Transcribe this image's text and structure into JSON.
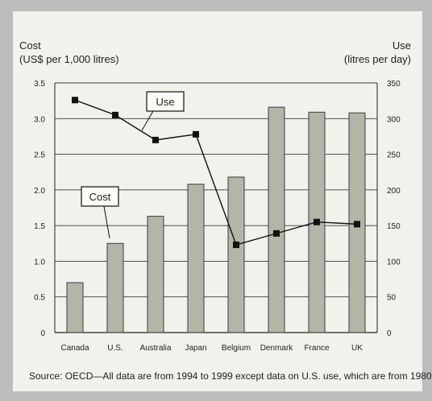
{
  "chart_data": {
    "type": "bar",
    "categories": [
      "Canada",
      "U.S.",
      "Australia",
      "Japan",
      "Belgium",
      "Denmark",
      "France",
      "UK"
    ],
    "series": [
      {
        "name": "Cost",
        "type": "bar",
        "axis": "left",
        "values": [
          0.7,
          1.25,
          1.63,
          2.08,
          2.18,
          3.16,
          3.09,
          3.08
        ],
        "color": "#b3b5a7"
      },
      {
        "name": "Use",
        "type": "line",
        "axis": "right",
        "values": [
          326,
          305,
          270,
          278,
          123,
          139,
          155,
          152
        ],
        "color": "#111111"
      }
    ],
    "ylabel": [
      "Cost",
      "(US$ per 1,000 litres)"
    ],
    "y2label": [
      "Use",
      "(litres per day)"
    ],
    "ylim": [
      0,
      3.5
    ],
    "y2lim": [
      0,
      350
    ],
    "yticks": [
      "0",
      "0.5",
      "1.0",
      "1.5",
      "2.0",
      "2.5",
      "3.0",
      "3.5"
    ],
    "y2ticks": [
      "0",
      "50",
      "100",
      "150",
      "200",
      "250",
      "300",
      "350"
    ],
    "grid": true,
    "callouts": [
      "Use",
      "Cost"
    ]
  },
  "source": "Source: OECD—All data are from 1994 to 1999 except data on U.S. use, which are from 1980."
}
